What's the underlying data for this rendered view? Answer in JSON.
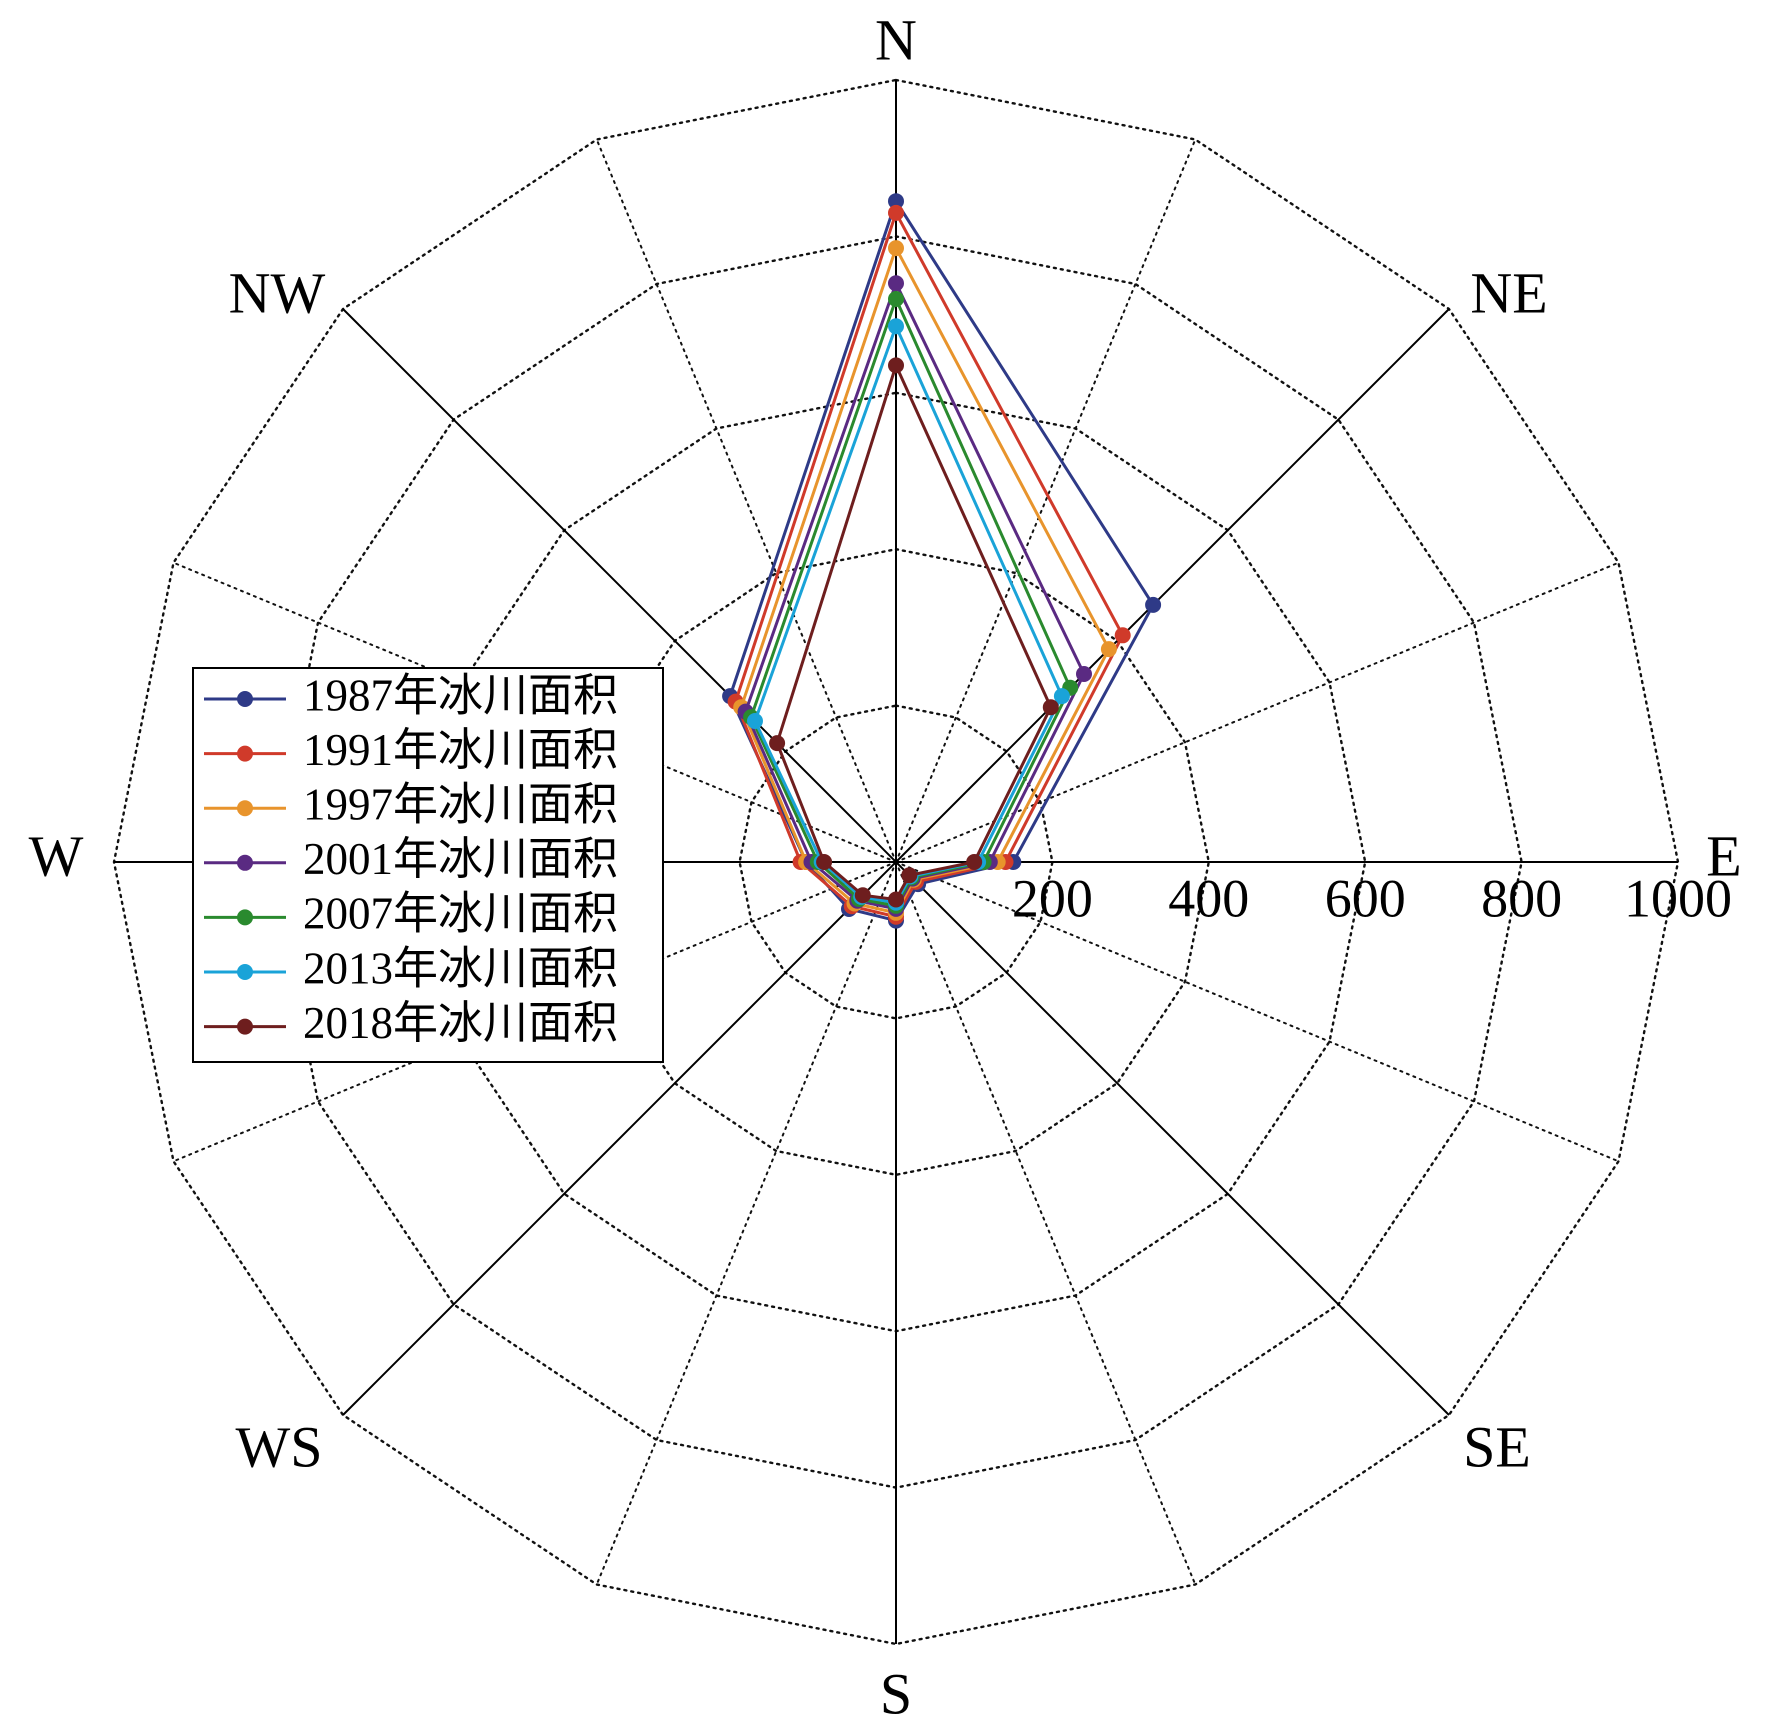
{
  "chart_data": {
    "type": "radar",
    "title": "",
    "directions": [
      "N",
      "NE",
      "E",
      "SE",
      "S",
      "WS",
      "W",
      "NW"
    ],
    "radial_axis": {
      "range": [
        0,
        1000
      ],
      "ticks": [
        200,
        400,
        600,
        800,
        1000
      ],
      "tick_labels": [
        "200",
        "400",
        "600",
        "800",
        "1000"
      ]
    },
    "grid": true,
    "grid_spokes": 16,
    "legend_position": "left",
    "series": [
      {
        "name": "1987年冰川面积",
        "color": "#2e3a87",
        "values": [
          845,
          465,
          150,
          40,
          75,
          85,
          115,
          300
        ]
      },
      {
        "name": "1991年冰川面积",
        "color": "#d03a2a",
        "values": [
          830,
          410,
          140,
          36,
          70,
          80,
          122,
          290
        ]
      },
      {
        "name": "1997年冰川面积",
        "color": "#e8942c",
        "values": [
          785,
          385,
          130,
          32,
          65,
          75,
          115,
          280
        ]
      },
      {
        "name": "2001年冰川面积",
        "color": "#5a2a82",
        "values": [
          740,
          340,
          120,
          30,
          60,
          70,
          108,
          272
        ]
      },
      {
        "name": "2007年冰川面积",
        "color": "#2a8a2e",
        "values": [
          720,
          315,
          112,
          28,
          56,
          67,
          100,
          262
        ]
      },
      {
        "name": "2013年冰川面积",
        "color": "#1aa3d8",
        "values": [
          685,
          300,
          105,
          26,
          52,
          63,
          95,
          255
        ]
      },
      {
        "name": "2018年冰川面积",
        "color": "#6e1e1e",
        "values": [
          635,
          280,
          100,
          24,
          48,
          60,
          92,
          215
        ]
      }
    ]
  }
}
